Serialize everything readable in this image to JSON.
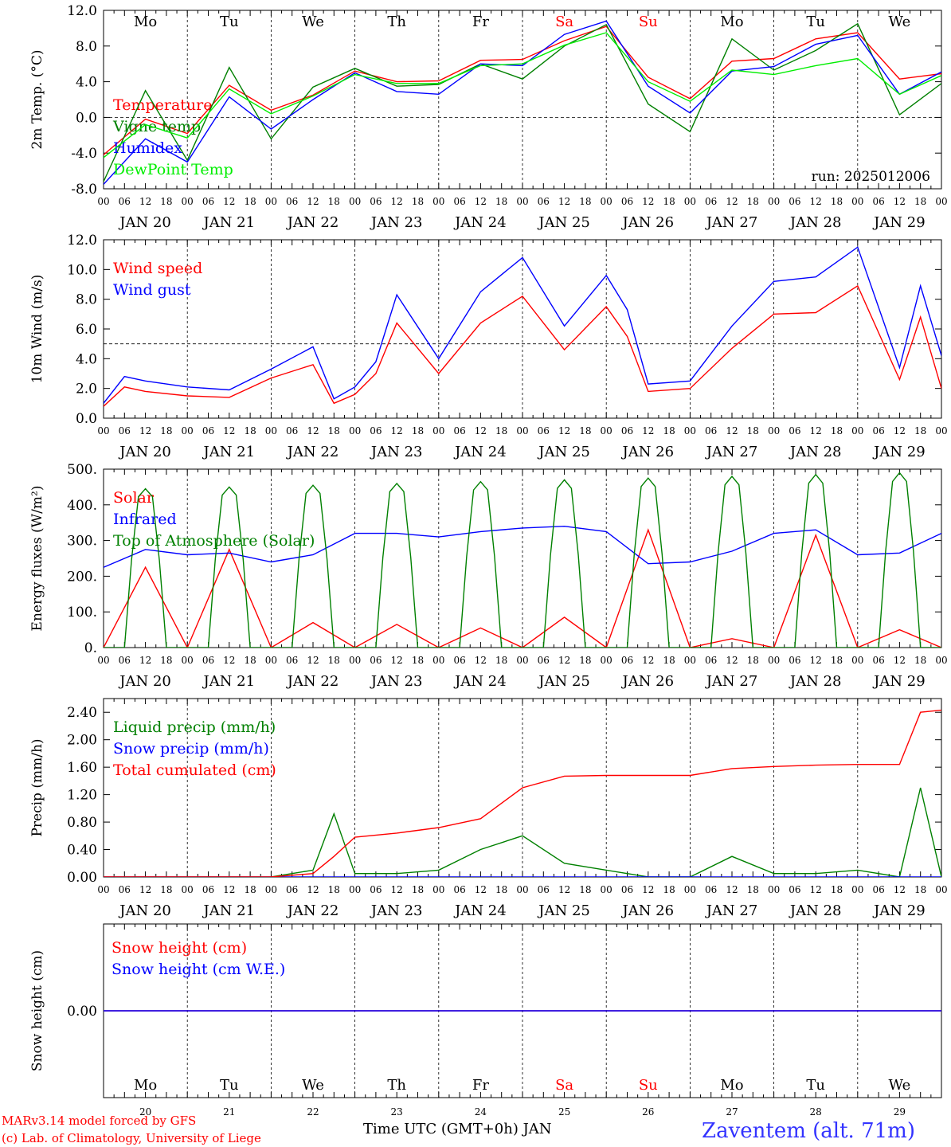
{
  "header_run": "run: 2025012006",
  "days": {
    "abbr": [
      "Mo",
      "Tu",
      "We",
      "Th",
      "Fr",
      "Sa",
      "Su",
      "Mo",
      "Tu",
      "We"
    ],
    "abbr_colors": [
      "#000000",
      "#000000",
      "#000000",
      "#000000",
      "#000000",
      "#ff0000",
      "#ff0000",
      "#000000",
      "#000000",
      "#000000"
    ],
    "dates": [
      "JAN 20",
      "JAN 21",
      "JAN 22",
      "JAN 23",
      "JAN 24",
      "JAN 25",
      "JAN 26",
      "JAN 27",
      "JAN 28",
      "JAN 29"
    ],
    "numbers": [
      "20",
      "21",
      "22",
      "23",
      "24",
      "25",
      "26",
      "27",
      "28",
      "29"
    ],
    "hour_ticks": [
      "00",
      "06",
      "12",
      "18"
    ],
    "final_hour": "00"
  },
  "footer": {
    "model_line1": "MARv3.14 model forced by GFS",
    "model_line2": "(c) Lab. of Climatology, University of Liege",
    "time_axis": "Time UTC (GMT+0h) JAN",
    "station": "Zaventem (alt. 71m)"
  },
  "colors": {
    "red": "#ff0000",
    "dark_green": "#008000",
    "blue": "#0000ff",
    "light_green": "#00ee00",
    "station": "#3333ff"
  },
  "chart_data": [
    {
      "type": "line",
      "ylabel": "2m Temp. (°C)",
      "ylim": [
        -8,
        12
      ],
      "yticks": [
        "12.0",
        "8.0",
        "4.0",
        "0.0",
        "-4.0",
        "-8.0"
      ],
      "refline": 0,
      "x_hours": [
        0,
        12,
        24,
        36,
        48,
        60,
        72,
        84,
        96,
        108,
        120,
        132,
        144,
        156,
        168,
        180,
        192,
        204,
        216,
        228,
        240
      ],
      "series": [
        {
          "name": "Temperature",
          "color": "#ff0000",
          "values": [
            -4.2,
            -0.2,
            -1.8,
            3.6,
            0.8,
            2.5,
            5.2,
            4.0,
            4.1,
            6.4,
            6.5,
            8.6,
            10.2,
            4.5,
            2.1,
            6.3,
            6.6,
            8.8,
            9.5,
            4.3,
            4.9
          ]
        },
        {
          "name": "Vigne temp",
          "color": "#008000",
          "values": [
            -7.2,
            3.0,
            -4.8,
            5.6,
            -2.4,
            3.4,
            5.5,
            3.5,
            3.7,
            6.0,
            4.3,
            8.0,
            10.4,
            1.5,
            -1.6,
            8.8,
            5.3,
            7.5,
            10.5,
            0.3,
            3.8
          ]
        },
        {
          "name": "Humidex",
          "color": "#0000ff",
          "values": [
            -7.5,
            -2.4,
            -5.0,
            2.3,
            -1.3,
            2.0,
            5.0,
            2.9,
            2.6,
            6.0,
            5.8,
            9.3,
            10.8,
            3.5,
            0.5,
            5.2,
            5.7,
            8.2,
            9.2,
            2.6,
            5.1
          ]
        },
        {
          "name": "DewPoint Temp",
          "color": "#00ee00",
          "values": [
            -4.5,
            -0.8,
            -2.3,
            3.2,
            0.4,
            2.4,
            4.8,
            3.8,
            3.8,
            5.8,
            6.0,
            8.1,
            9.5,
            4.0,
            1.8,
            5.3,
            4.8,
            5.8,
            6.6,
            2.6,
            4.7
          ]
        }
      ]
    },
    {
      "type": "line",
      "ylabel": "10m Wind (m/s)",
      "ylim": [
        0,
        12
      ],
      "yticks": [
        "12.0",
        "10.0",
        "8.0",
        "6.0",
        "4.0",
        "2.0",
        "0.0"
      ],
      "refline": 5,
      "x_hours": [
        0,
        6,
        12,
        24,
        36,
        48,
        60,
        66,
        72,
        78,
        84,
        96,
        108,
        120,
        132,
        144,
        150,
        156,
        168,
        180,
        192,
        204,
        216,
        228,
        234,
        240
      ],
      "series": [
        {
          "name": "Wind speed",
          "color": "#ff0000",
          "values": [
            0.8,
            2.1,
            1.8,
            1.5,
            1.4,
            2.7,
            3.6,
            1.0,
            1.6,
            3.0,
            6.4,
            3.0,
            6.4,
            8.2,
            4.6,
            7.5,
            5.5,
            1.8,
            2.0,
            4.7,
            7.0,
            7.1,
            8.9,
            2.6,
            6.8,
            2.0
          ]
        },
        {
          "name": "Wind gust",
          "color": "#0000ff",
          "values": [
            1.0,
            2.8,
            2.5,
            2.1,
            1.9,
            3.3,
            4.8,
            1.3,
            2.1,
            3.8,
            8.3,
            4.0,
            8.5,
            10.8,
            6.2,
            9.6,
            7.3,
            2.3,
            2.5,
            6.2,
            9.2,
            9.5,
            11.5,
            3.4,
            8.9,
            4.2
          ]
        }
      ]
    },
    {
      "type": "line",
      "ylabel": "Energy fluxes (W/m²)",
      "ylim": [
        0,
        500
      ],
      "yticks": [
        "500.",
        "400.",
        "300.",
        "200.",
        "100.",
        "0."
      ],
      "refline": null,
      "x_hours": [
        0,
        12,
        24,
        36,
        48,
        60,
        72,
        84,
        96,
        108,
        120,
        132,
        144,
        156,
        168,
        180,
        192,
        204,
        216,
        228,
        240
      ],
      "series": [
        {
          "name": "Solar",
          "color": "#ff0000",
          "values": [
            0,
            225,
            0,
            275,
            0,
            70,
            0,
            65,
            0,
            55,
            0,
            85,
            0,
            330,
            0,
            25,
            0,
            315,
            0,
            50,
            0
          ]
        },
        {
          "name": "Infrared",
          "color": "#0000ff",
          "values": [
            225,
            275,
            260,
            265,
            240,
            260,
            320,
            320,
            310,
            325,
            335,
            340,
            325,
            235,
            240,
            270,
            320,
            330,
            260,
            265,
            320
          ]
        },
        {
          "name": "Top of Atmosphere (Solar)",
          "color": "#008000",
          "peaks": [
            445,
            450,
            455,
            460,
            465,
            470,
            475,
            480,
            485,
            490
          ]
        }
      ]
    },
    {
      "type": "line",
      "ylabel": "Precip (mm/h)",
      "ylim": [
        0,
        2.6
      ],
      "yticks": [
        "2.40",
        "2.00",
        "1.60",
        "1.20",
        "0.80",
        "0.40",
        "0.00"
      ],
      "refline": null,
      "x_hours": [
        0,
        24,
        48,
        60,
        66,
        72,
        84,
        96,
        108,
        120,
        132,
        144,
        156,
        168,
        180,
        192,
        204,
        216,
        228,
        234,
        240
      ],
      "series": [
        {
          "name": "Liquid precip (mm/h)",
          "color": "#008000",
          "values": [
            0,
            0,
            0,
            0.1,
            0.92,
            0.05,
            0.05,
            0.1,
            0.4,
            0.6,
            0.2,
            0.1,
            0,
            0,
            0.3,
            0.05,
            0.05,
            0.1,
            0,
            1.3,
            0
          ]
        },
        {
          "name": "Snow precip (mm/h)",
          "color": "#0000ff",
          "values": [
            0,
            0,
            0,
            0,
            0,
            0,
            0,
            0,
            0,
            0,
            0,
            0,
            0,
            0,
            0,
            0,
            0,
            0,
            0,
            0,
            0
          ]
        },
        {
          "name": "Total cumulated (cm)",
          "color": "#ff0000",
          "values": [
            0,
            0,
            0,
            0.05,
            0.3,
            0.58,
            0.64,
            0.72,
            0.85,
            1.3,
            1.47,
            1.48,
            1.48,
            1.48,
            1.58,
            1.61,
            1.63,
            1.64,
            1.64,
            2.4,
            2.43
          ]
        }
      ]
    },
    {
      "type": "line",
      "ylabel": "Snow height (cm)",
      "ylim": [
        -1,
        1
      ],
      "yticks": [
        "0.00"
      ],
      "refline": null,
      "x_hours": [
        0,
        240
      ],
      "series": [
        {
          "name": "Snow height (cm)",
          "color": "#ff0000",
          "values": [
            0,
            0
          ]
        },
        {
          "name": "Snow height (cm W.E.)",
          "color": "#0000ff",
          "values": [
            0,
            0
          ]
        }
      ]
    }
  ]
}
